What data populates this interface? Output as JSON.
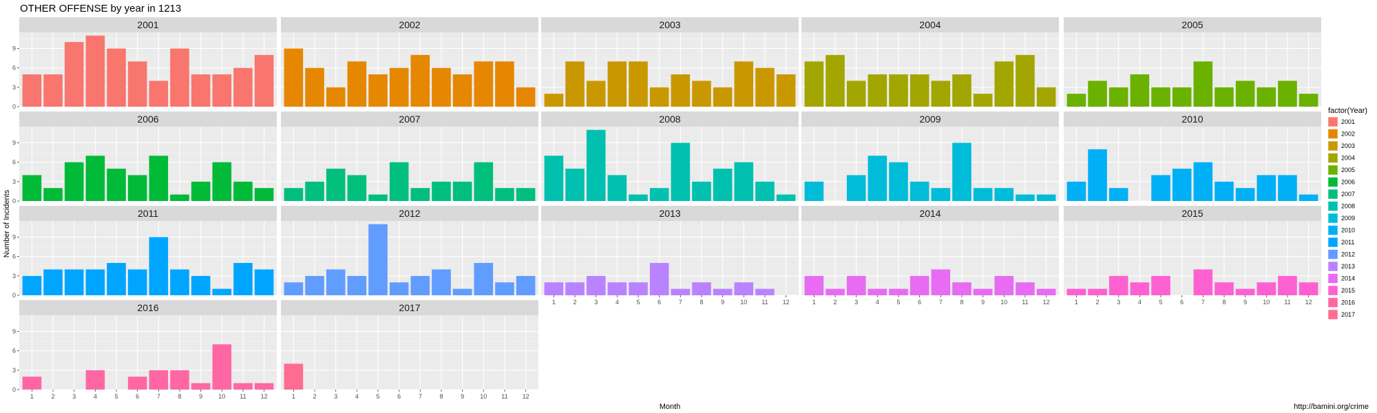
{
  "chart_data": {
    "type": "bar",
    "title": "OTHER OFFENSE by year in 1213",
    "xlabel": "Month",
    "ylabel": "Number of Incidents",
    "caption": "http://bamini.org/crime",
    "legend_title": "factor(Year)",
    "legend_position": "right",
    "facet_by": "year",
    "facet_ncol": 5,
    "grid": true,
    "ylim": [
      0,
      11.5
    ],
    "y_ticks": [
      0,
      3,
      6,
      9
    ],
    "categories": [
      1,
      2,
      3,
      4,
      5,
      6,
      7,
      8,
      9,
      10,
      11,
      12
    ],
    "series": [
      {
        "name": "2001",
        "color": "#F8766D",
        "values": [
          5,
          5,
          10,
          11,
          9,
          7,
          4,
          9,
          5,
          5,
          6,
          8
        ]
      },
      {
        "name": "2002",
        "color": "#E58700",
        "values": [
          9,
          6,
          3,
          7,
          5,
          6,
          8,
          6,
          5,
          7,
          7,
          3
        ]
      },
      {
        "name": "2003",
        "color": "#C99800",
        "values": [
          2,
          7,
          4,
          7,
          7,
          3,
          5,
          4,
          3,
          7,
          6,
          5
        ]
      },
      {
        "name": "2004",
        "color": "#A3A500",
        "values": [
          7,
          8,
          4,
          5,
          5,
          5,
          4,
          5,
          2,
          7,
          8,
          3
        ]
      },
      {
        "name": "2005",
        "color": "#6BB100",
        "values": [
          2,
          4,
          3,
          5,
          3,
          3,
          7,
          3,
          4,
          3,
          4,
          2
        ]
      },
      {
        "name": "2006",
        "color": "#00BA38",
        "values": [
          4,
          2,
          6,
          7,
          5,
          4,
          7,
          1,
          3,
          6,
          3,
          2
        ]
      },
      {
        "name": "2007",
        "color": "#00BF7D",
        "values": [
          2,
          3,
          5,
          4,
          1,
          6,
          2,
          3,
          3,
          6,
          2,
          2
        ]
      },
      {
        "name": "2008",
        "color": "#00C0AF",
        "values": [
          7,
          5,
          11,
          4,
          1,
          2,
          9,
          3,
          5,
          6,
          3,
          1
        ]
      },
      {
        "name": "2009",
        "color": "#00BCD8",
        "values": [
          3,
          0,
          4,
          7,
          6,
          3,
          2,
          9,
          2,
          2,
          1,
          1
        ]
      },
      {
        "name": "2010",
        "color": "#00B0F6",
        "values": [
          3,
          8,
          2,
          0,
          4,
          5,
          6,
          3,
          2,
          4,
          4,
          1
        ]
      },
      {
        "name": "2011",
        "color": "#00A5FF",
        "values": [
          3,
          4,
          4,
          4,
          5,
          4,
          9,
          4,
          3,
          1,
          5,
          4
        ]
      },
      {
        "name": "2012",
        "color": "#619CFF",
        "values": [
          2,
          3,
          4,
          3,
          11,
          2,
          3,
          4,
          1,
          5,
          2,
          3
        ]
      },
      {
        "name": "2013",
        "color": "#B983FF",
        "values": [
          2,
          2,
          3,
          2,
          2,
          5,
          1,
          2,
          1,
          2,
          1,
          0
        ]
      },
      {
        "name": "2014",
        "color": "#E76BF3",
        "values": [
          3,
          1,
          3,
          1,
          1,
          3,
          4,
          2,
          1,
          3,
          2,
          1
        ]
      },
      {
        "name": "2015",
        "color": "#FD61D1",
        "values": [
          1,
          1,
          3,
          2,
          3,
          0,
          4,
          2,
          1,
          2,
          3,
          2
        ]
      },
      {
        "name": "2016",
        "color": "#FF67A4",
        "values": [
          2,
          0,
          0,
          3,
          0,
          2,
          3,
          3,
          1,
          7,
          1,
          1
        ]
      },
      {
        "name": "2017",
        "color": "#FF6C90",
        "values": [
          4,
          0,
          0,
          0,
          0,
          0,
          0,
          0,
          0,
          0,
          0,
          0
        ]
      }
    ]
  }
}
